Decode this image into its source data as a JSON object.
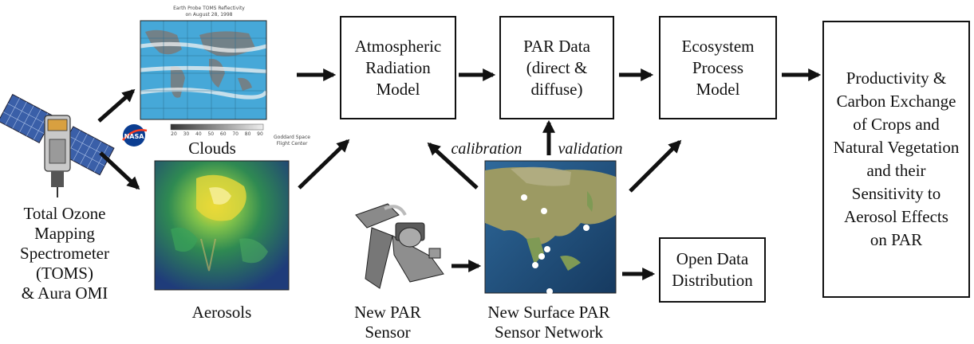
{
  "boxes": {
    "atmospheric": "Atmospheric\nRadiation\nModel",
    "par_data": "PAR Data\n(direct &\ndiffuse)",
    "ecosystem": "Ecosystem\nProcess\nModel",
    "productivity": "Productivity &\nCarbon Exchange\nof Crops and\nNatural Vegetation\nand their\nSensitivity to\nAerosol Effects\non PAR",
    "open_data": "Open Data\nDistribution"
  },
  "labels": {
    "toms": "Total Ozone\nMapping\nSpectrometer\n(TOMS)\n& Aura OMI",
    "clouds": "Clouds",
    "aerosols": "Aerosols",
    "new_par_sensor": "New PAR\nSensor",
    "sensor_network": "New Surface PAR\nSensor Network",
    "calibration": "calibration",
    "validation": "validation"
  },
  "map_caption": {
    "line1": "Earth Probe TOMS Reflectivity",
    "line2": "on August 28, 1998",
    "credit1": "Goddard Space",
    "credit2": "Flight Center",
    "scale": [
      "20",
      "30",
      "40",
      "50",
      "60",
      "70",
      "80",
      "90"
    ]
  },
  "nasa_logo": "NASA",
  "colors": {
    "ocean": "#46a8d8",
    "land": "#7a7a7a",
    "arrow": "#111111",
    "aerosol_high": "#f2e030",
    "aerosol_low": "#1f3c7a",
    "globe_ocean": "#24507e",
    "globe_land": "#9c9a63"
  }
}
